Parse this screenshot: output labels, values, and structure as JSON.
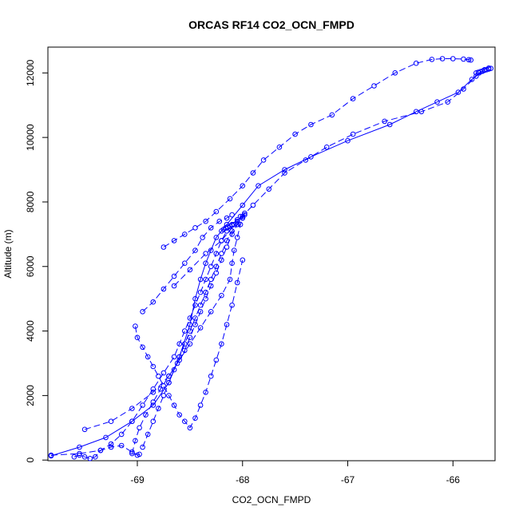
{
  "chart_data": {
    "type": "scatter",
    "title": "ORCAS RF14 CO2_OCN_FMPD",
    "xlabel": "CO2_OCN_FMPD",
    "ylabel": "Altitude (m)",
    "xlim": [
      -69.85,
      -65.6
    ],
    "ylim": [
      -20,
      12800
    ],
    "xticks": [
      -69,
      -68,
      -67,
      -66
    ],
    "yticks": [
      0,
      2000,
      4000,
      6000,
      8000,
      10000,
      12000
    ],
    "grid": false,
    "colors": {
      "series": "#0000ff",
      "axis": "#000000"
    },
    "series": [
      {
        "line_style": "dashed",
        "x": [
          -69.82,
          -69.55,
          -69.35,
          -69.25,
          -69.15,
          -69.05,
          -68.95,
          -68.85,
          -68.75,
          -68.65,
          -68.6,
          -68.55,
          -68.5,
          -68.45,
          -68.4,
          -68.35,
          -68.3,
          -68.25,
          -68.2,
          -68.15,
          -68.1,
          -68.05,
          -68.0,
          -67.98
        ],
        "y": [
          150,
          200,
          300,
          500,
          800,
          1200,
          1700,
          2200,
          2700,
          3200,
          3600,
          4000,
          4400,
          4800,
          5200,
          5600,
          6000,
          6400,
          6800,
          7100,
          7300,
          7450,
          7550,
          7650
        ]
      },
      {
        "line_style": "dashed",
        "x": [
          -69.05,
          -69.02,
          -68.98,
          -68.92,
          -68.85,
          -68.78,
          -68.7,
          -68.62,
          -68.55,
          -68.5,
          -68.45,
          -68.4,
          -68.35,
          -68.3,
          -68.25,
          -68.2,
          -68.15,
          -68.1,
          -68.05,
          -68.02
        ],
        "y": [
          200,
          600,
          1000,
          1400,
          1800,
          2200,
          2600,
          3000,
          3400,
          3800,
          4200,
          4600,
          5000,
          5400,
          5800,
          6200,
          6600,
          7000,
          7300,
          7550
        ]
      },
      {
        "line_style": "dashed",
        "x": [
          -68.95,
          -68.9,
          -68.85,
          -68.8,
          -68.75,
          -68.7,
          -68.65,
          -68.6,
          -68.55,
          -68.5,
          -68.45,
          -68.4,
          -68.35,
          -68.3,
          -68.25,
          -68.2,
          -68.15,
          -68.1,
          -68.05,
          -68.0,
          -67.98
        ],
        "y": [
          400,
          800,
          1200,
          1600,
          2000,
          2400,
          2800,
          3200,
          3600,
          4000,
          4400,
          4800,
          5200,
          5600,
          6000,
          6400,
          6800,
          7100,
          7300,
          7500,
          7600
        ]
      },
      {
        "line_style": "dashed",
        "x": [
          -69.02,
          -69.0,
          -68.95,
          -68.9,
          -68.85,
          -68.8,
          -68.75,
          -68.7,
          -68.65,
          -68.6,
          -68.55,
          -68.5,
          -68.45,
          -68.4,
          -68.35,
          -68.3,
          -68.25,
          -68.2,
          -68.15,
          -68.1,
          -68.05,
          -68.0
        ],
        "y": [
          4150,
          3800,
          3500,
          3200,
          2900,
          2600,
          2300,
          2000,
          1700,
          1400,
          1200,
          1000,
          1300,
          1700,
          2100,
          2600,
          3100,
          3600,
          4200,
          4800,
          5500,
          6200
        ]
      },
      {
        "line_style": "dashed",
        "x": [
          -69.5,
          -69.25,
          -69.05,
          -68.85,
          -68.7,
          -68.6,
          -68.5,
          -68.4,
          -68.3,
          -68.2,
          -68.12,
          -68.1,
          -68.08,
          -68.05,
          -68.02,
          -68.0
        ],
        "y": [
          950,
          1200,
          1600,
          2100,
          2600,
          3100,
          3600,
          4100,
          4600,
          5100,
          5600,
          6100,
          6500,
          6900,
          7300,
          7500
        ]
      },
      {
        "line_style": "dashed",
        "x": [
          -68.95,
          -68.85,
          -68.75,
          -68.65,
          -68.55,
          -68.45,
          -68.38,
          -68.3,
          -68.22,
          -68.15,
          -68.1
        ],
        "y": [
          4600,
          4900,
          5300,
          5700,
          6100,
          6500,
          6900,
          7200,
          7400,
          7500,
          7600
        ]
      },
      {
        "line_style": "dashed",
        "x": [
          -69.6,
          -69.55,
          -69.5,
          -69.45,
          -69.4,
          -69.35,
          -69.25,
          -69.15,
          -69.05,
          -69.0,
          -68.98
        ],
        "y": [
          100,
          150,
          100,
          50,
          100,
          300,
          400,
          450,
          250,
          150,
          180
        ]
      },
      {
        "line_style": "dashed",
        "x": [
          -68.75,
          -68.65,
          -68.55,
          -68.45,
          -68.35,
          -68.25,
          -68.12,
          -68.0,
          -67.9,
          -67.8,
          -67.65,
          -67.5,
          -67.35,
          -67.15,
          -66.95,
          -66.75,
          -66.55,
          -66.35,
          -66.2,
          -66.1,
          -66.0,
          -65.9,
          -65.85,
          -65.83
        ],
        "y": [
          6600,
          6800,
          7000,
          7200,
          7400,
          7700,
          8100,
          8500,
          8900,
          9300,
          9700,
          10100,
          10400,
          10700,
          11200,
          11600,
          12000,
          12300,
          12420,
          12440,
          12440,
          12430,
          12410,
          12400
        ]
      },
      {
        "line_style": "solid",
        "x": [
          -69.82,
          -69.55,
          -69.3,
          -69.05,
          -68.85,
          -68.7,
          -68.6,
          -68.5,
          -68.45,
          -68.4,
          -68.35,
          -68.3,
          -68.25,
          -68.15,
          -68.0,
          -67.85,
          -67.6,
          -67.35,
          -67.0,
          -66.6,
          -66.35,
          -66.15,
          -65.95,
          -65.82,
          -65.75,
          -65.7,
          -65.66
        ],
        "y": [
          130,
          400,
          700,
          1200,
          1700,
          2400,
          3200,
          4200,
          5000,
          5600,
          6100,
          6500,
          6900,
          7300,
          7900,
          8500,
          9000,
          9400,
          9900,
          10400,
          10800,
          11100,
          11400,
          11800,
          12000,
          12100,
          12150
        ]
      },
      {
        "line_style": "dashed",
        "x": [
          -68.65,
          -68.5,
          -68.35,
          -68.2,
          -68.05,
          -67.9,
          -67.75,
          -67.6,
          -67.4,
          -67.2,
          -66.95,
          -66.65,
          -66.3,
          -66.05,
          -65.9,
          -65.78,
          -65.72
        ],
        "y": [
          5400,
          5900,
          6400,
          6800,
          7400,
          7900,
          8400,
          8900,
          9300,
          9700,
          10100,
          10500,
          10800,
          11100,
          11500,
          11900,
          12050
        ]
      }
    ],
    "dense_markers": [
      {
        "x": [
          -68.2,
          -68.18,
          -68.16,
          -68.14,
          -68.12,
          -68.1,
          -68.08
        ],
        "y": [
          7100,
          7150,
          7200,
          7220,
          7250,
          7280,
          7300
        ]
      },
      {
        "x": [
          -65.78,
          -65.76,
          -65.74,
          -65.72,
          -65.7,
          -65.68,
          -65.66,
          -65.64
        ],
        "y": [
          12000,
          12020,
          12040,
          12060,
          12080,
          12100,
          12120,
          12140
        ]
      }
    ]
  }
}
